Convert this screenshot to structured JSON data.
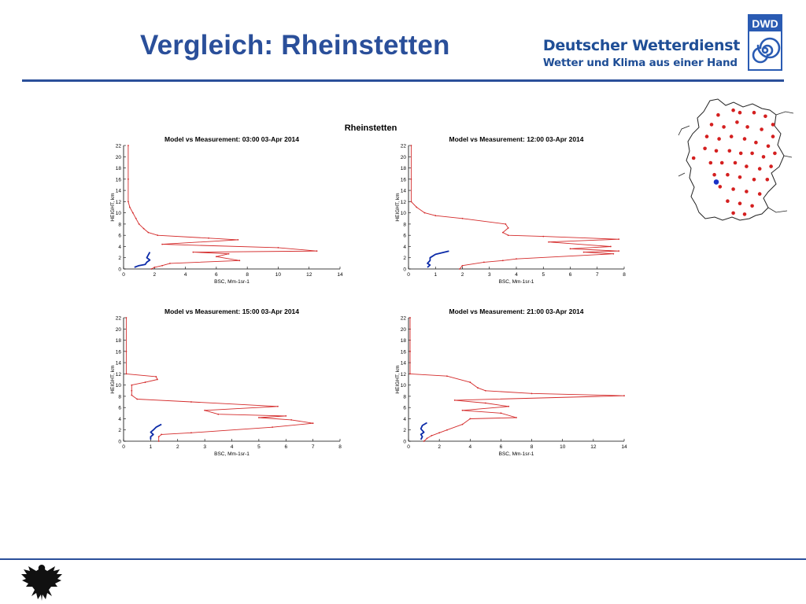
{
  "slide": {
    "title": "Vergleich: Rheinstetten",
    "brand_name": "Deutscher Wetterdienst",
    "brand_slogan": "Wetter und Klima aus einer Hand",
    "logo_text": "DWD",
    "accent_color": "#2a4f9a"
  },
  "figure": {
    "suptitle": "Rheinstetten"
  },
  "chart_data": [
    {
      "type": "line",
      "title": "Model vs Measurement: 03:00 03-Apr 2014",
      "xlabel": "BSC, Mm-1sr-1",
      "ylabel": "HEIGHT, km",
      "xlim": [
        0,
        14
      ],
      "ylim": [
        0,
        22
      ],
      "xticks": [
        0,
        2,
        4,
        6,
        8,
        10,
        12,
        14
      ],
      "yticks": [
        0,
        2,
        4,
        6,
        8,
        10,
        12,
        14,
        16,
        18,
        20,
        22
      ],
      "colors": {
        "model": "#d42a2a",
        "measurement": "#0b2aa8"
      },
      "series": [
        {
          "points": [
            [
              0.3,
              22
            ],
            [
              0.3,
              16
            ],
            [
              0.3,
              12
            ],
            [
              0.4,
              11
            ],
            [
              0.6,
              10
            ],
            [
              0.8,
              9
            ],
            [
              1.0,
              8
            ],
            [
              1.3,
              7.2
            ],
            [
              1.6,
              6.5
            ],
            [
              2.2,
              6.0
            ],
            [
              5.5,
              5.5
            ],
            [
              7.4,
              5.2
            ],
            [
              2.5,
              4.4
            ],
            [
              10.0,
              3.8
            ],
            [
              12.5,
              3.2
            ],
            [
              4.5,
              3.0
            ],
            [
              6.8,
              2.7
            ],
            [
              6.0,
              2.2
            ],
            [
              7.5,
              1.5
            ],
            [
              3.0,
              1.0
            ],
            [
              2.5,
              0.6
            ],
            [
              2.0,
              0.3
            ],
            [
              1.8,
              0
            ]
          ]
        },
        {
          "points": [
            [
              0.7,
              0.3
            ],
            [
              1.0,
              0.6
            ],
            [
              1.4,
              0.8
            ],
            [
              1.5,
              1.2
            ],
            [
              1.7,
              1.6
            ],
            [
              1.5,
              2.0
            ],
            [
              1.6,
              2.5
            ],
            [
              1.7,
              3.0
            ]
          ]
        }
      ]
    },
    {
      "type": "line",
      "title": "Model vs Measurement: 12:00 03-Apr 2014",
      "xlabel": "BSC, Mm-1sr-1",
      "ylabel": "HEIGHT, km",
      "xlim": [
        0,
        8
      ],
      "ylim": [
        0,
        22
      ],
      "xticks": [
        0,
        1,
        2,
        3,
        4,
        5,
        6,
        7,
        8
      ],
      "yticks": [
        0,
        2,
        4,
        6,
        8,
        10,
        12,
        14,
        16,
        18,
        20,
        22
      ],
      "colors": {
        "model": "#d42a2a",
        "measurement": "#0b2aa8"
      },
      "series": [
        {
          "points": [
            [
              0.1,
              22
            ],
            [
              0.1,
              16
            ],
            [
              0.1,
              12
            ],
            [
              0.3,
              11
            ],
            [
              0.6,
              10
            ],
            [
              1.0,
              9.5
            ],
            [
              2.0,
              9.0
            ],
            [
              3.6,
              8.0
            ],
            [
              3.7,
              7.3
            ],
            [
              3.5,
              6.5
            ],
            [
              3.7,
              6.0
            ],
            [
              5.0,
              5.8
            ],
            [
              7.8,
              5.3
            ],
            [
              5.2,
              4.8
            ],
            [
              7.5,
              4.0
            ],
            [
              6.0,
              3.6
            ],
            [
              7.8,
              3.2
            ],
            [
              6.5,
              3.0
            ],
            [
              7.6,
              2.7
            ],
            [
              4.0,
              1.8
            ],
            [
              3.5,
              1.5
            ],
            [
              2.8,
              1.2
            ],
            [
              2.0,
              0.6
            ],
            [
              1.9,
              0
            ]
          ]
        },
        {
          "points": [
            [
              0.7,
              0.3
            ],
            [
              0.8,
              0.7
            ],
            [
              0.7,
              1.0
            ],
            [
              0.8,
              1.5
            ],
            [
              0.8,
              2.0
            ],
            [
              1.0,
              2.6
            ],
            [
              1.5,
              3.2
            ]
          ]
        }
      ]
    },
    {
      "type": "line",
      "title": "Model vs Measurement: 15:00 03-Apr 2014",
      "xlabel": "BSC, Mm-1sr-1",
      "ylabel": "HEIGHT, km",
      "xlim": [
        0,
        8
      ],
      "ylim": [
        0,
        22
      ],
      "xticks": [
        0,
        1,
        2,
        3,
        4,
        5,
        6,
        7,
        8
      ],
      "yticks": [
        0,
        2,
        4,
        6,
        8,
        10,
        12,
        14,
        16,
        18,
        20,
        22
      ],
      "colors": {
        "model": "#d42a2a",
        "measurement": "#0b2aa8"
      },
      "series": [
        {
          "points": [
            [
              0.1,
              22
            ],
            [
              0.1,
              16
            ],
            [
              0.1,
              12
            ],
            [
              1.2,
              11.5
            ],
            [
              1.25,
              11.0
            ],
            [
              0.8,
              10.5
            ],
            [
              0.3,
              10.0
            ],
            [
              0.3,
              9.0
            ],
            [
              0.3,
              8.2
            ],
            [
              0.5,
              7.5
            ],
            [
              2.5,
              7.0
            ],
            [
              5.7,
              6.2
            ],
            [
              3.0,
              5.5
            ],
            [
              3.5,
              4.8
            ],
            [
              6.0,
              4.5
            ],
            [
              5.0,
              4.2
            ],
            [
              6.2,
              3.8
            ],
            [
              7.0,
              3.2
            ],
            [
              5.5,
              2.5
            ],
            [
              2.5,
              1.5
            ],
            [
              1.4,
              1.2
            ],
            [
              1.3,
              0.8
            ],
            [
              1.3,
              0
            ]
          ]
        },
        {
          "points": [
            [
              1.0,
              0.3
            ],
            [
              1.0,
              0.8
            ],
            [
              1.1,
              1.2
            ],
            [
              1.0,
              1.6
            ],
            [
              1.1,
              2.0
            ],
            [
              1.2,
              2.5
            ],
            [
              1.4,
              3.0
            ]
          ]
        }
      ]
    },
    {
      "type": "line",
      "title": "Model vs Measurement: 21:00 03-Apr 2014",
      "xlabel": "BSC, Mm-1sr-1",
      "ylabel": "HEIGHT, km",
      "xlim": [
        0,
        14
      ],
      "ylim": [
        0,
        22
      ],
      "xticks": [
        0,
        2,
        4,
        6,
        8,
        10,
        12,
        14
      ],
      "yticks": [
        0,
        2,
        4,
        6,
        8,
        10,
        12,
        14,
        16,
        18,
        20,
        22
      ],
      "colors": {
        "model": "#d42a2a",
        "measurement": "#0b2aa8"
      },
      "series": [
        {
          "points": [
            [
              0.1,
              22
            ],
            [
              0.1,
              16
            ],
            [
              0.1,
              12
            ],
            [
              2.5,
              11.6
            ],
            [
              4.0,
              10.5
            ],
            [
              4.5,
              9.5
            ],
            [
              5.0,
              9.0
            ],
            [
              8.0,
              8.5
            ],
            [
              14.0,
              8.1
            ],
            [
              3.0,
              7.3
            ],
            [
              5.0,
              6.8
            ],
            [
              6.5,
              6.2
            ],
            [
              3.5,
              5.5
            ],
            [
              6.0,
              5.0
            ],
            [
              7.0,
              4.2
            ],
            [
              4.0,
              4.0
            ],
            [
              3.5,
              3.0
            ],
            [
              2.5,
              2.0
            ],
            [
              2.0,
              1.5
            ],
            [
              1.5,
              1.0
            ],
            [
              1.2,
              0.5
            ],
            [
              1.0,
              0
            ]
          ]
        },
        {
          "points": [
            [
              0.8,
              0.3
            ],
            [
              0.9,
              0.8
            ],
            [
              0.8,
              1.2
            ],
            [
              1.0,
              1.6
            ],
            [
              0.8,
              2.2
            ],
            [
              0.9,
              2.8
            ],
            [
              1.2,
              3.3
            ]
          ]
        }
      ]
    }
  ],
  "station_map": {
    "station_color": "#d41f1f",
    "highlight_color": "#1a32c8",
    "stations": [
      [
        0.32,
        0.12
      ],
      [
        0.48,
        0.08
      ],
      [
        0.55,
        0.1
      ],
      [
        0.7,
        0.1
      ],
      [
        0.82,
        0.13
      ],
      [
        0.9,
        0.2
      ],
      [
        0.25,
        0.2
      ],
      [
        0.38,
        0.22
      ],
      [
        0.52,
        0.18
      ],
      [
        0.63,
        0.22
      ],
      [
        0.78,
        0.24
      ],
      [
        0.9,
        0.3
      ],
      [
        0.2,
        0.3
      ],
      [
        0.33,
        0.32
      ],
      [
        0.46,
        0.3
      ],
      [
        0.6,
        0.32
      ],
      [
        0.72,
        0.35
      ],
      [
        0.85,
        0.38
      ],
      [
        0.18,
        0.4
      ],
      [
        0.3,
        0.42
      ],
      [
        0.44,
        0.42
      ],
      [
        0.56,
        0.44
      ],
      [
        0.68,
        0.44
      ],
      [
        0.8,
        0.47
      ],
      [
        0.92,
        0.44
      ],
      [
        0.24,
        0.52
      ],
      [
        0.36,
        0.52
      ],
      [
        0.5,
        0.52
      ],
      [
        0.62,
        0.55
      ],
      [
        0.76,
        0.57
      ],
      [
        0.88,
        0.55
      ],
      [
        0.28,
        0.62
      ],
      [
        0.42,
        0.62
      ],
      [
        0.55,
        0.64
      ],
      [
        0.7,
        0.66
      ],
      [
        0.84,
        0.66
      ],
      [
        0.34,
        0.72
      ],
      [
        0.48,
        0.74
      ],
      [
        0.62,
        0.76
      ],
      [
        0.76,
        0.78
      ],
      [
        0.42,
        0.84
      ],
      [
        0.55,
        0.86
      ],
      [
        0.68,
        0.88
      ],
      [
        0.48,
        0.94
      ],
      [
        0.6,
        0.95
      ],
      [
        0.06,
        0.48
      ]
    ],
    "highlight": [
      0.3,
      0.68
    ]
  }
}
